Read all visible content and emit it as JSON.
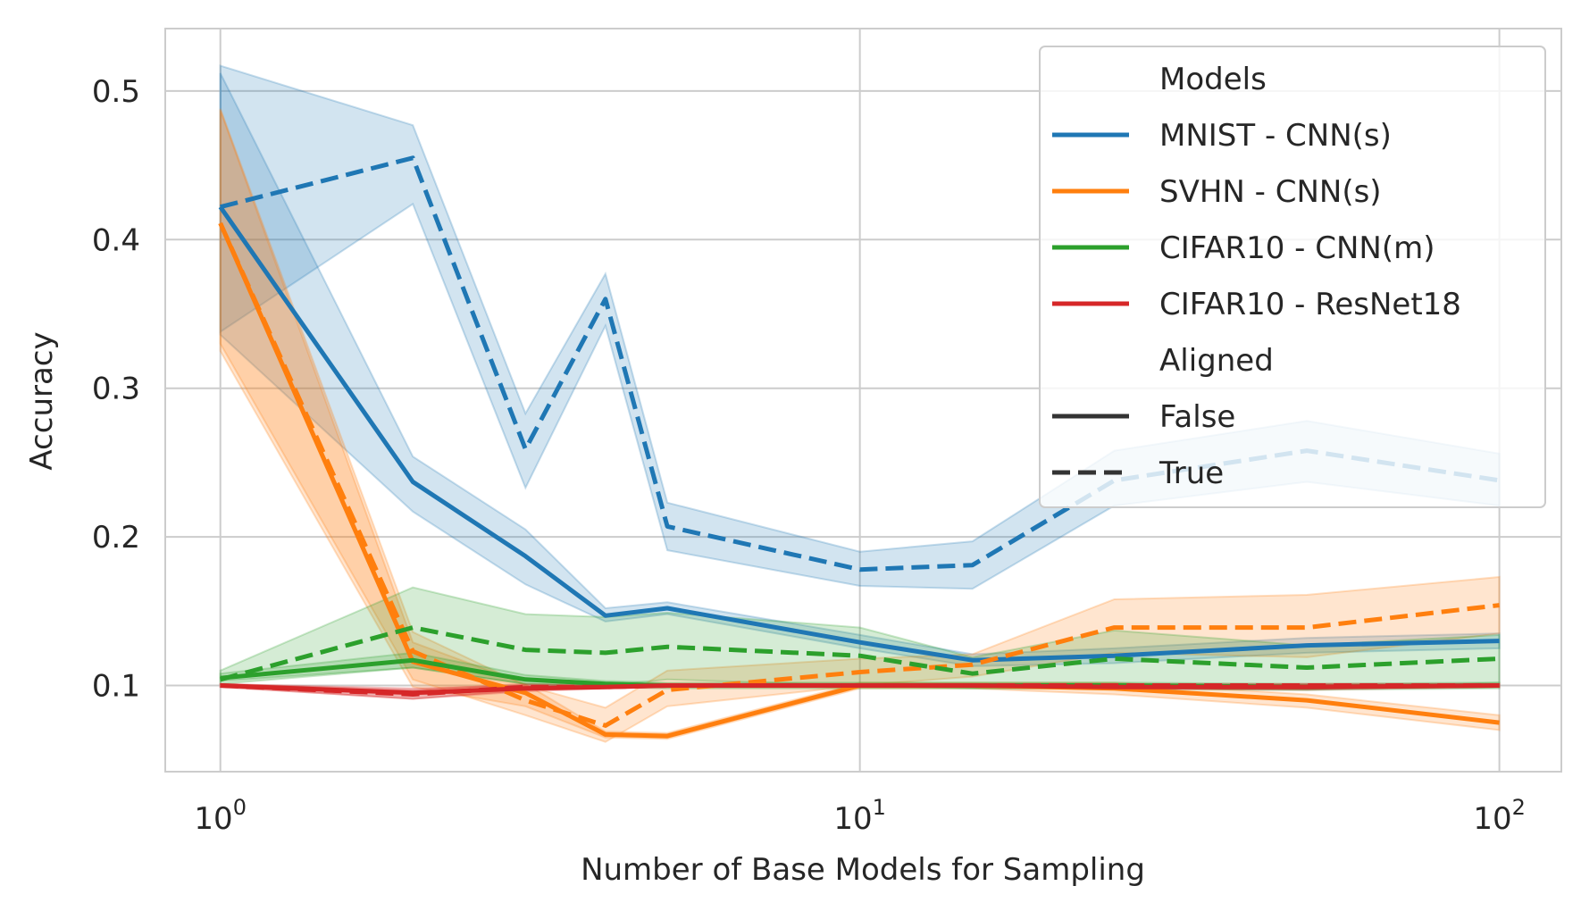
{
  "chart_data": {
    "type": "line",
    "title": "",
    "xlabel": "Number of Base Models for Sampling",
    "ylabel": "Accuracy",
    "xscale": "log",
    "xlim": [
      0.82,
      125
    ],
    "ylim": [
      0.042,
      0.542
    ],
    "grid": true,
    "x_ticks": [
      {
        "value": 1,
        "base": "10",
        "exp": "0"
      },
      {
        "value": 10,
        "base": "10",
        "exp": "1"
      },
      {
        "value": 100,
        "base": "10",
        "exp": "2"
      }
    ],
    "y_ticks": [
      {
        "value": 0.1,
        "label": "0.1"
      },
      {
        "value": 0.2,
        "label": "0.2"
      },
      {
        "value": 0.3,
        "label": "0.3"
      },
      {
        "value": 0.4,
        "label": "0.4"
      },
      {
        "value": 0.5,
        "label": "0.5"
      }
    ],
    "legend": {
      "position": "top-right",
      "hue_title": "Models",
      "style_title": "Aligned",
      "styles": [
        {
          "name": "False",
          "dash": "solid"
        },
        {
          "name": "True",
          "dash": "dashed"
        }
      ]
    },
    "series": [
      {
        "name": "MNIST - CNN(s)",
        "aligned": "False",
        "color": "#1f77b4",
        "x": [
          1,
          2,
          3,
          4,
          5,
          10,
          15,
          25,
          50,
          100
        ],
        "y": [
          0.422,
          0.237,
          0.187,
          0.147,
          0.152,
          0.129,
          0.117,
          0.12,
          0.127,
          0.13
        ],
        "lower": [
          0.336,
          0.217,
          0.168,
          0.143,
          0.148,
          0.125,
          0.113,
          0.115,
          0.122,
          0.125
        ],
        "upper": [
          0.512,
          0.254,
          0.205,
          0.152,
          0.156,
          0.134,
          0.121,
          0.125,
          0.132,
          0.135
        ]
      },
      {
        "name": "MNIST - CNN(s)",
        "aligned": "True",
        "color": "#1f77b4",
        "x": [
          1,
          2,
          3,
          4,
          5,
          10,
          15,
          25,
          50,
          100
        ],
        "y": [
          0.422,
          0.455,
          0.259,
          0.36,
          0.207,
          0.178,
          0.181,
          0.238,
          0.258,
          0.238
        ],
        "lower": [
          0.338,
          0.424,
          0.233,
          0.342,
          0.191,
          0.167,
          0.165,
          0.221,
          0.237,
          0.221
        ],
        "upper": [
          0.517,
          0.477,
          0.283,
          0.377,
          0.223,
          0.19,
          0.197,
          0.258,
          0.278,
          0.256
        ]
      },
      {
        "name": "SVHN - CNN(s)",
        "aligned": "False",
        "color": "#ff7f0e",
        "x": [
          1,
          2,
          3,
          4,
          5,
          10,
          15,
          25,
          50,
          100
        ],
        "y": [
          0.411,
          0.116,
          0.095,
          0.067,
          0.066,
          0.1,
          0.1,
          0.098,
          0.09,
          0.075
        ],
        "lower": [
          0.325,
          0.099,
          0.086,
          0.065,
          0.064,
          0.098,
          0.098,
          0.094,
          0.085,
          0.07
        ],
        "upper": [
          0.487,
          0.129,
          0.101,
          0.069,
          0.068,
          0.102,
          0.102,
          0.102,
          0.094,
          0.08
        ]
      },
      {
        "name": "SVHN - CNN(s)",
        "aligned": "True",
        "color": "#ff7f0e",
        "x": [
          1,
          2,
          3,
          4,
          5,
          10,
          15,
          25,
          50,
          100
        ],
        "y": [
          0.411,
          0.123,
          0.09,
          0.073,
          0.097,
          0.109,
          0.114,
          0.139,
          0.139,
          0.154
        ],
        "lower": [
          0.33,
          0.104,
          0.08,
          0.062,
          0.086,
          0.1,
          0.106,
          0.122,
          0.119,
          0.135
        ],
        "upper": [
          0.488,
          0.136,
          0.1,
          0.085,
          0.11,
          0.118,
          0.121,
          0.158,
          0.161,
          0.173
        ]
      },
      {
        "name": "CIFAR10 - CNN(m)",
        "aligned": "False",
        "color": "#2ca02c",
        "x": [
          1,
          2,
          3,
          4,
          5,
          10,
          15,
          25,
          50,
          100
        ],
        "y": [
          0.105,
          0.117,
          0.104,
          0.101,
          0.1,
          0.1,
          0.1,
          0.1,
          0.099,
          0.1
        ],
        "lower": [
          0.103,
          0.112,
          0.101,
          0.099,
          0.098,
          0.098,
          0.098,
          0.098,
          0.097,
          0.098
        ],
        "upper": [
          0.108,
          0.122,
          0.107,
          0.103,
          0.102,
          0.102,
          0.102,
          0.102,
          0.101,
          0.102
        ]
      },
      {
        "name": "CIFAR10 - CNN(m)",
        "aligned": "True",
        "color": "#2ca02c",
        "x": [
          1,
          2,
          3,
          4,
          5,
          10,
          15,
          25,
          50,
          100
        ],
        "y": [
          0.104,
          0.139,
          0.124,
          0.122,
          0.126,
          0.12,
          0.108,
          0.118,
          0.112,
          0.118
        ],
        "lower": [
          0.101,
          0.112,
          0.101,
          0.1,
          0.104,
          0.1,
          0.098,
          0.098,
          0.097,
          0.102
        ],
        "upper": [
          0.11,
          0.166,
          0.148,
          0.146,
          0.149,
          0.139,
          0.119,
          0.137,
          0.127,
          0.134
        ]
      },
      {
        "name": "CIFAR10 - ResNet18",
        "aligned": "False",
        "color": "#d62728",
        "x": [
          1,
          2,
          3,
          4,
          5,
          10,
          15,
          25,
          50,
          100
        ],
        "y": [
          0.1,
          0.095,
          0.098,
          0.099,
          0.1,
          0.1,
          0.1,
          0.099,
          0.099,
          0.1
        ],
        "lower": [
          0.099,
          0.091,
          0.096,
          0.098,
          0.099,
          0.099,
          0.099,
          0.098,
          0.097,
          0.099
        ],
        "upper": [
          0.101,
          0.098,
          0.1,
          0.1,
          0.101,
          0.101,
          0.101,
          0.1,
          0.101,
          0.101
        ]
      },
      {
        "name": "CIFAR10 - ResNet18",
        "aligned": "True",
        "color": "#d62728",
        "x": [
          1,
          2,
          3,
          4,
          5,
          10,
          15,
          25,
          50,
          100
        ],
        "y": [
          0.1,
          0.094,
          0.099,
          0.099,
          0.1,
          0.1,
          0.1,
          0.1,
          0.1,
          0.1
        ],
        "lower": [
          0.099,
          0.091,
          0.097,
          0.098,
          0.099,
          0.099,
          0.099,
          0.099,
          0.099,
          0.099
        ],
        "upper": [
          0.101,
          0.097,
          0.101,
          0.1,
          0.101,
          0.101,
          0.101,
          0.101,
          0.101,
          0.101
        ]
      }
    ]
  }
}
